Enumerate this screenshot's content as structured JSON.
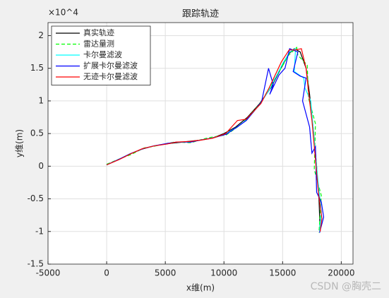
{
  "chart_data": {
    "type": "line",
    "title": "跟踪轨迹",
    "x_label": "x维(m)",
    "y_label": "y维(m)",
    "y_exponent": "×10^4",
    "xlim": [
      -5000,
      21000
    ],
    "xticks": [
      -5000,
      0,
      5000,
      10000,
      15000,
      20000
    ],
    "ylim": [
      -1.5,
      2.2
    ],
    "yticks": [
      -1.5,
      -1,
      -0.5,
      0,
      0.5,
      1,
      1.5,
      2
    ],
    "grid": true,
    "legend": "upper left",
    "series": [
      {
        "name": "真实轨迹",
        "color": "#000000",
        "dash": "solid",
        "x": [
          0,
          1000,
          2000,
          3000,
          4000,
          5000,
          6000,
          7000,
          8000,
          9000,
          10000,
          11000,
          12000,
          13000,
          14000,
          15000,
          15500,
          16000,
          16500,
          17000,
          17300,
          17600,
          17900,
          18100,
          18200
        ],
        "values": [
          0.02,
          0.1,
          0.19,
          0.26,
          0.31,
          0.34,
          0.36,
          0.38,
          0.4,
          0.43,
          0.5,
          0.6,
          0.75,
          0.95,
          1.2,
          1.55,
          1.72,
          1.8,
          1.75,
          1.5,
          1.1,
          0.6,
          0.0,
          -0.5,
          -1.0
        ]
      },
      {
        "name": "雷达量测",
        "color": "#00ff00",
        "dash": "dashed",
        "x": [
          0,
          1200,
          2100,
          3200,
          3900,
          5200,
          5800,
          7200,
          8100,
          8800,
          10200,
          11300,
          11800,
          13200,
          13700,
          15200,
          15400,
          16200,
          16300,
          17100,
          17200,
          17800,
          17700,
          18300,
          18100
        ],
        "values": [
          0.03,
          0.12,
          0.18,
          0.28,
          0.3,
          0.35,
          0.37,
          0.36,
          0.41,
          0.44,
          0.48,
          0.62,
          0.7,
          0.98,
          1.15,
          1.6,
          1.68,
          1.82,
          1.7,
          1.55,
          1.05,
          0.65,
          -0.05,
          -0.45,
          -1.02
        ]
      },
      {
        "name": "卡尔曼滤波",
        "color": "#00ffff",
        "dash": "solid",
        "x": [
          0,
          1100,
          2000,
          3100,
          4000,
          5100,
          6000,
          7100,
          8000,
          9000,
          10100,
          11200,
          12000,
          13100,
          13900,
          15000,
          15600,
          16100,
          16000,
          16800,
          16900,
          17400,
          17700,
          18000,
          18300,
          18150
        ],
        "values": [
          0.02,
          0.11,
          0.19,
          0.27,
          0.31,
          0.34,
          0.37,
          0.37,
          0.4,
          0.43,
          0.49,
          0.61,
          0.72,
          0.96,
          1.18,
          1.57,
          1.75,
          1.8,
          1.45,
          1.35,
          1.2,
          1.0,
          0.4,
          -0.2,
          -0.7,
          -1.0
        ]
      },
      {
        "name": "扩展卡尔曼滤波",
        "color": "#0000ff",
        "dash": "solid",
        "x": [
          0,
          1100,
          2000,
          3100,
          4000,
          5200,
          6000,
          7200,
          8000,
          9000,
          10200,
          11200,
          11900,
          13200,
          13800,
          14200,
          13900,
          14700,
          15200,
          15600,
          16300,
          15900,
          16500,
          17000,
          16700,
          17300,
          17500,
          17800,
          17900,
          18300,
          18500,
          18150
        ],
        "values": [
          0.02,
          0.11,
          0.19,
          0.27,
          0.31,
          0.35,
          0.37,
          0.37,
          0.4,
          0.43,
          0.49,
          0.61,
          0.7,
          0.98,
          1.5,
          1.25,
          1.1,
          1.4,
          1.5,
          1.8,
          1.75,
          1.45,
          1.38,
          1.35,
          1.0,
          0.6,
          0.2,
          0.3,
          -0.4,
          -0.55,
          -0.78,
          -1.02
        ]
      },
      {
        "name": "无迹卡尔曼滤波",
        "color": "#ff0000",
        "dash": "solid",
        "x": [
          0,
          1050,
          2050,
          3050,
          4050,
          5150,
          5950,
          7150,
          8050,
          9050,
          10150,
          11150,
          11900,
          13150,
          13850,
          14900,
          15550,
          16050,
          16600,
          17000,
          17200,
          17500,
          17800,
          18050,
          18350,
          18200
        ],
        "values": [
          0.02,
          0.1,
          0.19,
          0.27,
          0.31,
          0.34,
          0.37,
          0.38,
          0.4,
          0.43,
          0.5,
          0.7,
          0.72,
          0.96,
          1.2,
          1.6,
          1.78,
          1.78,
          1.8,
          1.5,
          1.15,
          0.7,
          0.1,
          -0.4,
          -0.8,
          -1.0
        ]
      }
    ],
    "watermark": "CSDN @胸壳二"
  }
}
